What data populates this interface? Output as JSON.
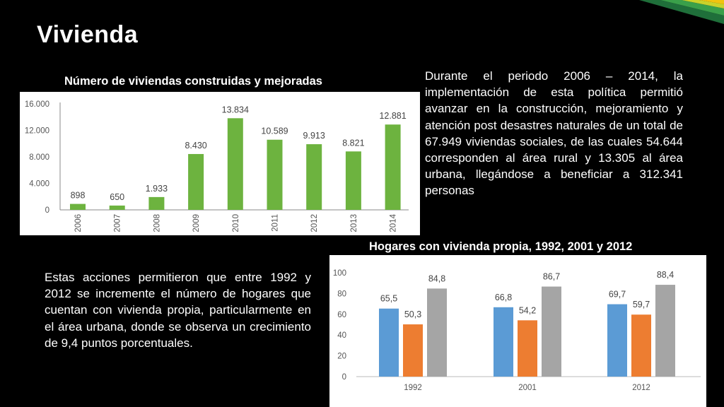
{
  "slide": {
    "title": "Vivienda",
    "paragraph_top": "Durante el periodo 2006 – 2014, la implementación de esta política permitió avanzar en la construcción, mejoramiento y atención post desastres naturales de un total de 67.949 viviendas sociales, de las cuales 54.644 corresponden al área rural y 13.305 al área urbana, llegándose a beneficiar a 312.341 personas",
    "paragraph_bottom": "Estas acciones permitieron que entre 1992 y 2012 se incremente el número de hogares que cuentan con vivienda propia, particularmente en el área urbana, donde se observa un crecimiento de 9,4 puntos porcentuales."
  },
  "colors": {
    "green": "#6db33f",
    "blue": "#5b9bd5",
    "orange": "#ed7d31",
    "gray": "#a5a5a5"
  },
  "chart_data": [
    {
      "type": "bar",
      "title": "Número de viviendas construidas y mejoradas",
      "categories": [
        "2006",
        "2007",
        "2008",
        "2009",
        "2010",
        "2011",
        "2012",
        "2013",
        "2014"
      ],
      "values": [
        898,
        650,
        1933,
        8430,
        13834,
        10589,
        9913,
        8821,
        12881
      ],
      "value_labels": [
        "898",
        "650",
        "1.933",
        "8.430",
        "13.834",
        "10.589",
        "9.913",
        "8.821",
        "12.881"
      ],
      "yticks": [
        "0",
        "4.000",
        "8.000",
        "12.000",
        "16.000"
      ],
      "ylim": [
        0,
        16000
      ],
      "grid": false,
      "legend": "none"
    },
    {
      "type": "bar",
      "title": "Hogares con vivienda propia, 1992, 2001 y 2012",
      "categories": [
        "1992",
        "2001",
        "2012"
      ],
      "series": [
        {
          "values": [
            65.5,
            66.8,
            69.7
          ],
          "labels": [
            "65,5",
            "66,8",
            "69,7"
          ]
        },
        {
          "values": [
            50.3,
            54.2,
            59.7
          ],
          "labels": [
            "50,3",
            "54,2",
            "59,7"
          ]
        },
        {
          "values": [
            84.8,
            86.7,
            88.4
          ],
          "labels": [
            "84,8",
            "86,7",
            "88,4"
          ]
        }
      ],
      "yticks": [
        "0",
        "20",
        "40",
        "60",
        "80",
        "100"
      ],
      "ylim": [
        0,
        100
      ],
      "grid": false,
      "legend": "none"
    }
  ]
}
